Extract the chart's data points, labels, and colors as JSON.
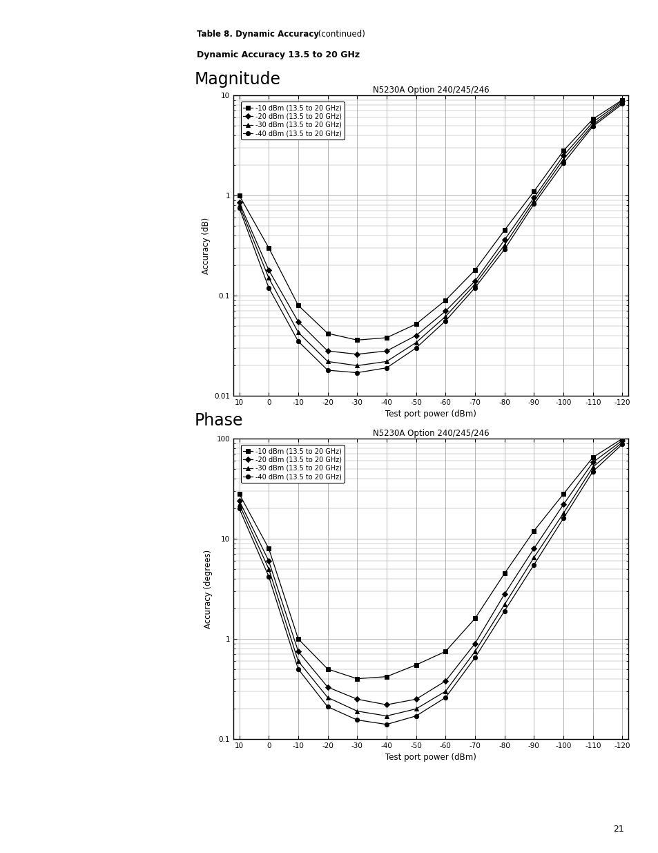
{
  "page_title_bold": "Table 8. Dynamic Accuracy",
  "page_title_normal": " (continued)",
  "section_title": "Dynamic Accuracy 13.5 to 20 GHz",
  "chart1_title": "Magnitude",
  "chart2_title": "Phase",
  "subtitle": "N5230A Option 240/245/246",
  "xlabel": "Test port power (dBm)",
  "ylabel1": "Accuracy (dB)",
  "ylabel2": "Accuracy (degrees)",
  "x_ticks": [
    10,
    0,
    -10,
    -20,
    -30,
    -40,
    -50,
    -60,
    -70,
    -80,
    -90,
    -100,
    -110,
    -120
  ],
  "legend_labels": [
    "-10 dBm (13.5 to 20 GHz)",
    "-20 dBm (13.5 to 20 GHz)",
    "-30 dBm (13.5 to 20 GHz)",
    "-40 dBm (13.5 to 20 GHz)"
  ],
  "markers": [
    "s",
    "D",
    "^",
    "o"
  ],
  "x_values": [
    10,
    0,
    -10,
    -20,
    -30,
    -40,
    -50,
    -60,
    -70,
    -80,
    -90,
    -100,
    -110,
    -120
  ],
  "mag_y_m10": [
    1.0,
    0.3,
    0.08,
    0.042,
    0.036,
    0.038,
    0.052,
    0.09,
    0.18,
    0.45,
    1.1,
    2.8,
    5.8,
    9.0
  ],
  "mag_y_m20": [
    0.85,
    0.18,
    0.055,
    0.028,
    0.026,
    0.028,
    0.04,
    0.07,
    0.14,
    0.36,
    0.95,
    2.5,
    5.4,
    8.8
  ],
  "mag_y_m30": [
    0.8,
    0.15,
    0.043,
    0.022,
    0.02,
    0.022,
    0.034,
    0.062,
    0.13,
    0.32,
    0.88,
    2.3,
    5.1,
    8.5
  ],
  "mag_y_m40": [
    0.75,
    0.12,
    0.035,
    0.018,
    0.017,
    0.019,
    0.03,
    0.056,
    0.12,
    0.29,
    0.82,
    2.1,
    4.9,
    8.2
  ],
  "phase_y_m10": [
    28.0,
    8.0,
    1.0,
    0.5,
    0.4,
    0.42,
    0.55,
    0.75,
    1.6,
    4.5,
    12.0,
    28.0,
    65.0,
    100.0
  ],
  "phase_y_m20": [
    24.0,
    6.0,
    0.75,
    0.33,
    0.25,
    0.22,
    0.25,
    0.38,
    0.9,
    2.8,
    8.0,
    22.0,
    58.0,
    96.0
  ],
  "phase_y_m30": [
    22.0,
    5.0,
    0.6,
    0.26,
    0.19,
    0.17,
    0.2,
    0.3,
    0.75,
    2.2,
    6.5,
    18.0,
    52.0,
    92.0
  ],
  "phase_y_m40": [
    20.0,
    4.2,
    0.5,
    0.21,
    0.155,
    0.14,
    0.17,
    0.26,
    0.65,
    1.9,
    5.5,
    16.0,
    47.0,
    88.0
  ],
  "mag_ylim": [
    0.01,
    10
  ],
  "phase_ylim": [
    0.1,
    100
  ],
  "line_color": "#000000",
  "background_color": "#ffffff",
  "grid_color": "#999999",
  "page_number": "21"
}
